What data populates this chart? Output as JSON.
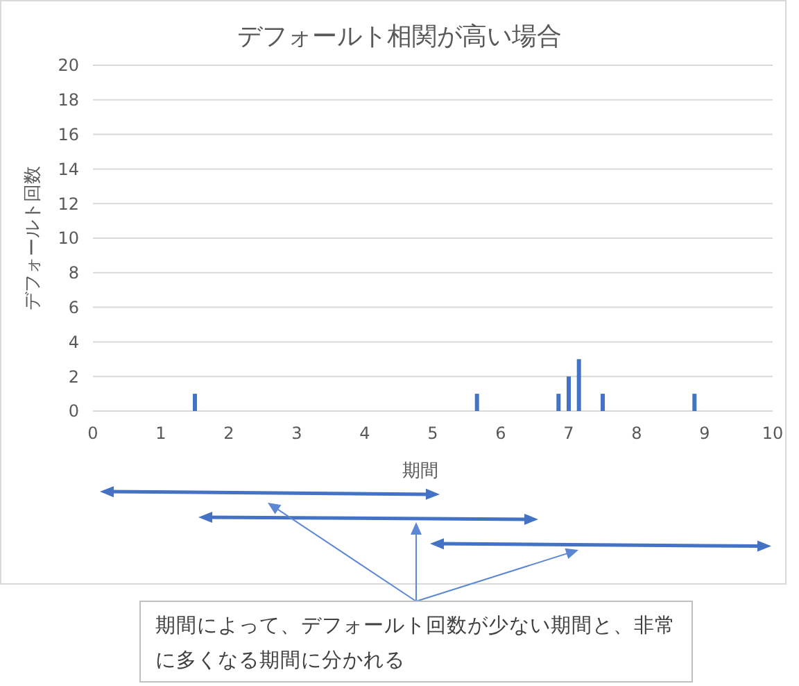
{
  "chart_data": {
    "type": "bar",
    "title": "デフォールト相関が高い場合",
    "xlabel": "期間",
    "ylabel": "デフォールト回数",
    "x": [
      1.5,
      5.65,
      6.85,
      7.0,
      7.15,
      7.5,
      8.85
    ],
    "values": [
      1,
      1,
      1,
      2,
      3,
      1,
      1
    ],
    "color": "#4472c4",
    "xlim": [
      0,
      10
    ],
    "xticks": [
      0,
      1,
      2,
      3,
      4,
      5,
      6,
      7,
      8,
      9,
      10
    ],
    "ylim": [
      0,
      20
    ],
    "yticks": [
      0,
      2,
      4,
      6,
      8,
      10,
      12,
      14,
      16,
      18,
      20
    ],
    "grid": "y",
    "annotations": [
      "期間によって、デフォールト回数が少ない期間と、非常に多くなる期間に分かれる"
    ]
  }
}
